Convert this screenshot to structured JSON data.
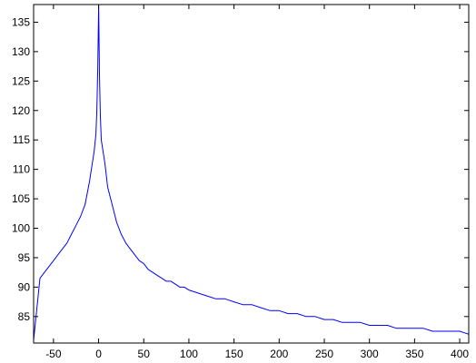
{
  "chart_data": {
    "type": "line",
    "title": "",
    "xlabel": "",
    "ylabel": "",
    "xlim": [
      -72,
      410
    ],
    "ylim": [
      80.5,
      138
    ],
    "grid": false,
    "xticks": [
      -50,
      0,
      50,
      100,
      150,
      200,
      250,
      300,
      350,
      400
    ],
    "yticks": [
      85,
      90,
      95,
      100,
      105,
      110,
      115,
      120,
      125,
      130,
      135
    ],
    "colors": {
      "line": "#0000ff",
      "axes": "#000000",
      "background": "#ffffff"
    },
    "series": [
      {
        "x": [
          -72,
          -65,
          -60,
          -55,
          -50,
          -45,
          -40,
          -35,
          -30,
          -25,
          -20,
          -15,
          -10,
          -7,
          -5,
          -3,
          -2,
          -1,
          0,
          1,
          2,
          3,
          5,
          7,
          10,
          15,
          20,
          25,
          30,
          35,
          40,
          45,
          50,
          55,
          60,
          65,
          70,
          75,
          80,
          85,
          90,
          95,
          100,
          110,
          120,
          130,
          140,
          150,
          160,
          170,
          180,
          190,
          200,
          210,
          220,
          230,
          240,
          250,
          260,
          270,
          280,
          290,
          300,
          310,
          320,
          330,
          340,
          350,
          360,
          370,
          380,
          390,
          400,
          410
        ],
        "values": [
          81,
          91.5,
          92.5,
          93.5,
          94.5,
          95.5,
          96.5,
          97.5,
          99,
          100.5,
          102,
          104,
          108,
          111,
          113,
          116,
          120,
          127,
          138,
          126,
          119,
          115,
          113,
          111,
          107,
          104,
          101,
          99,
          97.5,
          96.5,
          95.5,
          94.5,
          94,
          93,
          92.5,
          92,
          91.5,
          91,
          91,
          90.5,
          90,
          90,
          89.5,
          89,
          88.5,
          88,
          88,
          87.5,
          87,
          87,
          86.5,
          86,
          86,
          85.5,
          85.5,
          85,
          85,
          84.5,
          84.5,
          84,
          84,
          84,
          83.5,
          83.5,
          83.5,
          83,
          83,
          83,
          83,
          82.5,
          82.5,
          82.5,
          82.5,
          82
        ]
      }
    ]
  }
}
